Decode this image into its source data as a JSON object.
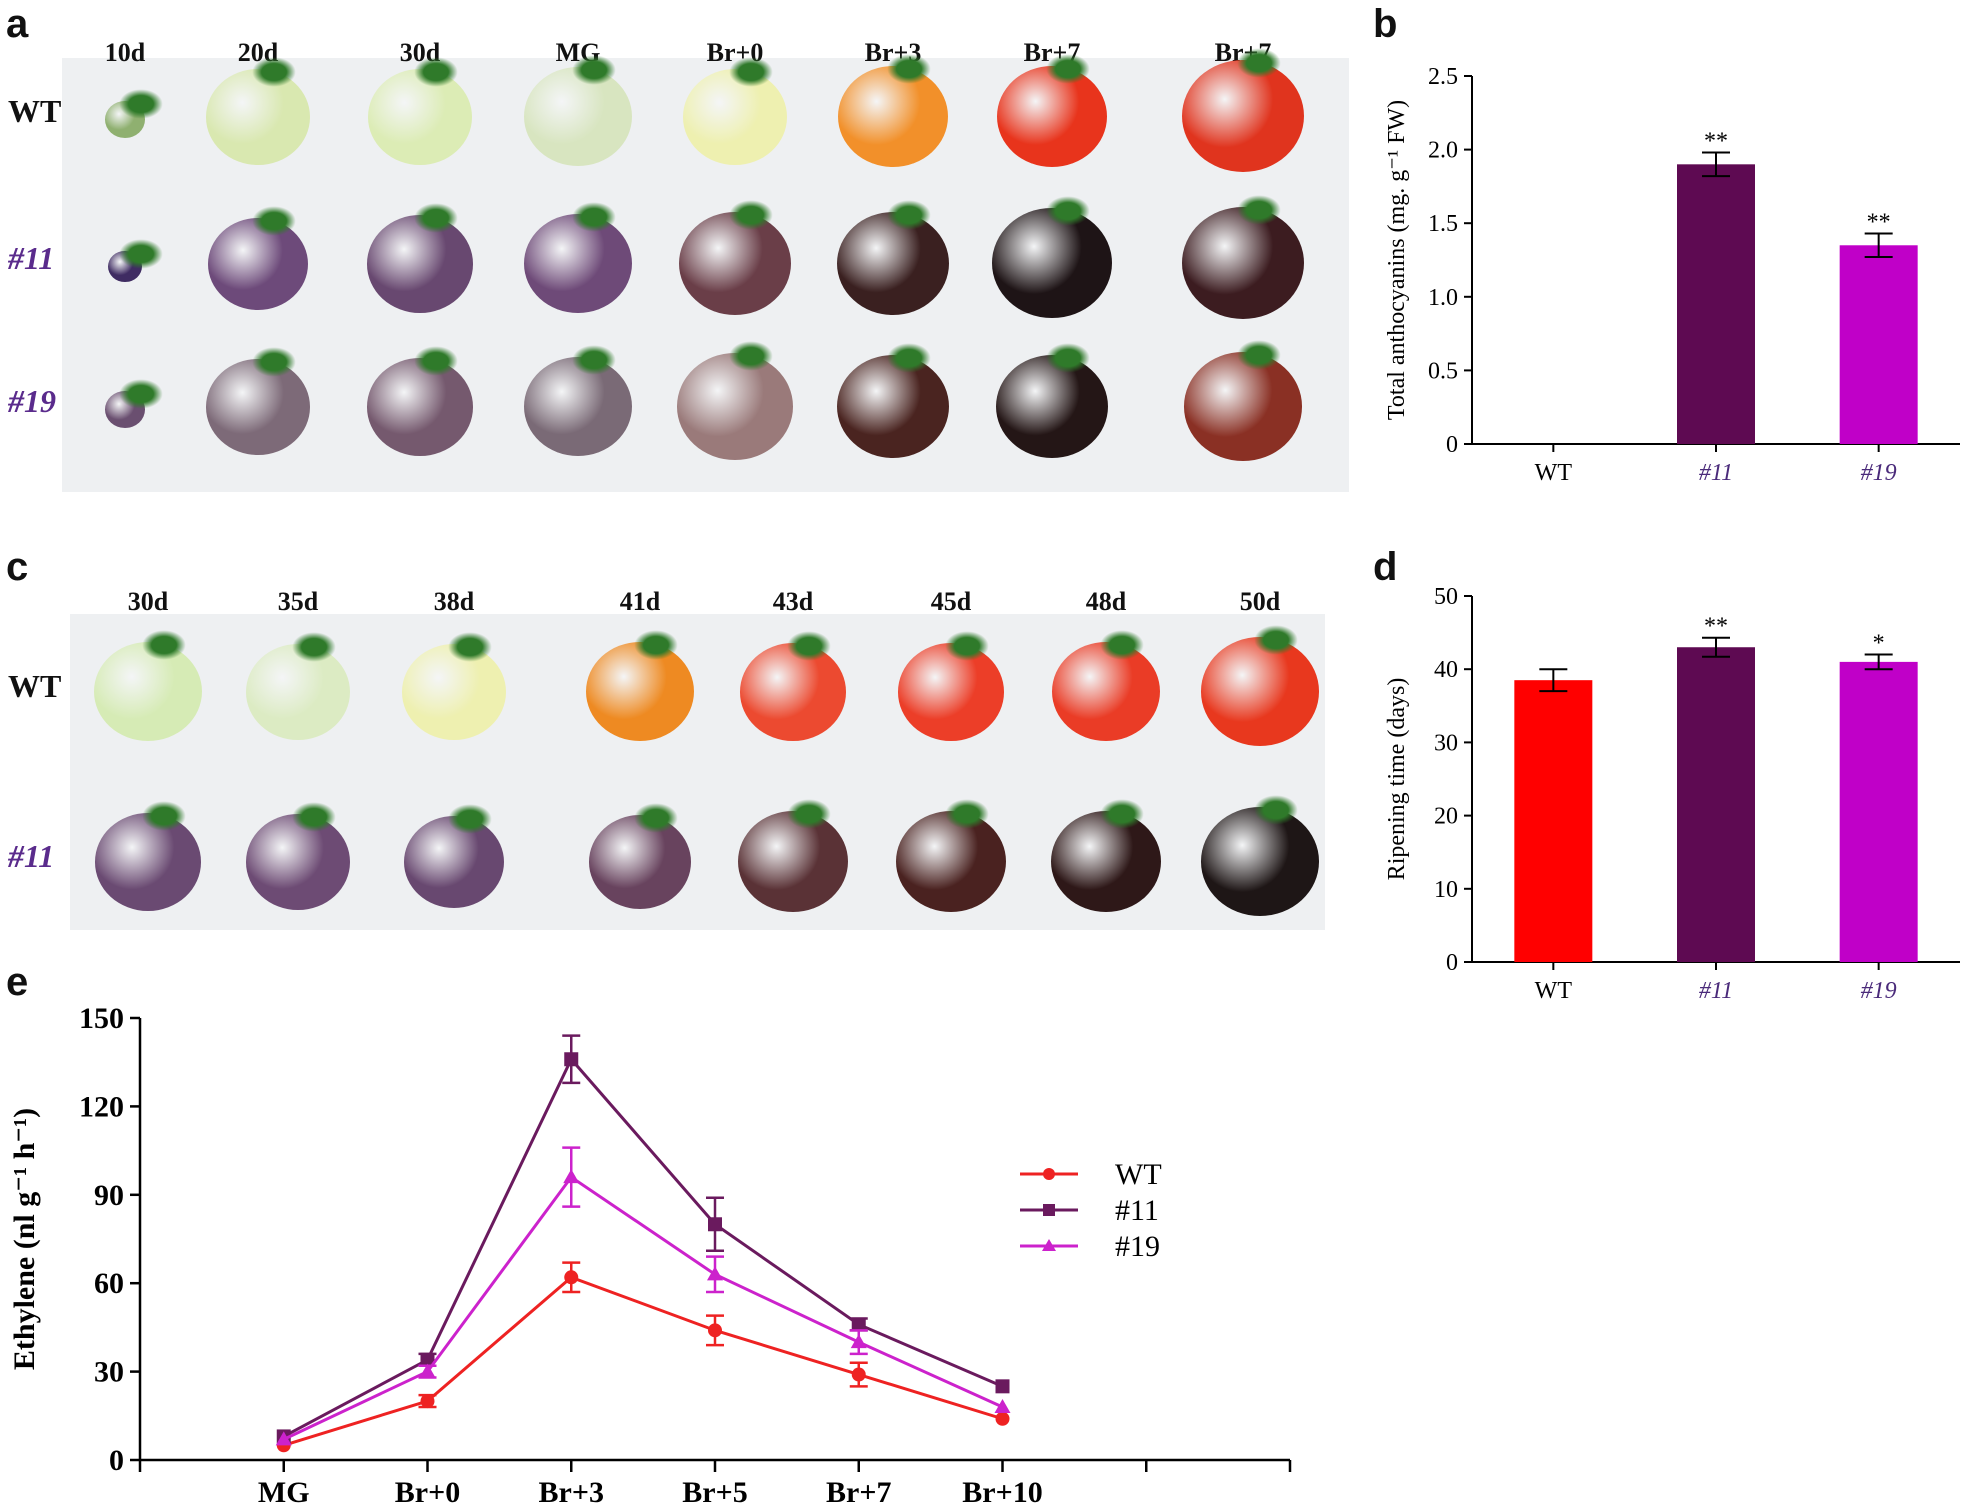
{
  "panel_a": {
    "letter": "a",
    "columns": [
      "10d",
      "20d",
      "30d",
      "MG",
      "Br+0",
      "Br+3",
      "Br+7",
      "Br+7"
    ],
    "rows": [
      {
        "label": "WT",
        "colors": [
          "#8fb070",
          "#d9e8b0",
          "#dcecb5",
          "#d8e5c0",
          "#eef0b0",
          "#f2902a",
          "#e8341c",
          "#e0341e"
        ]
      },
      {
        "label": "#11",
        "colors": [
          "#3f2c62",
          "#6d4a7a",
          "#684870",
          "#6e4a78",
          "#6a3e48",
          "#3a2020",
          "#1e1416",
          "#3c1c20"
        ]
      },
      {
        "label": "#19",
        "colors": [
          "#6a4f70",
          "#7d6a78",
          "#75596e",
          "#7a6a76",
          "#9a7a7a",
          "#4a2420",
          "#241616",
          "#8a3024"
        ]
      }
    ]
  },
  "panel_c": {
    "letter": "c",
    "columns": [
      "30d",
      "35d",
      "38d",
      "41d",
      "43d",
      "45d",
      "48d",
      "50d"
    ],
    "rows": [
      {
        "label": "WT",
        "colors": [
          "#d6ebb5",
          "#dcebc3",
          "#eef0b0",
          "#ee8a22",
          "#ec4a30",
          "#ec3e28",
          "#ea3c26",
          "#e8381e"
        ]
      },
      {
        "label": "#11",
        "colors": [
          "#6a4a72",
          "#6d4b74",
          "#684870",
          "#68435e",
          "#5a3236",
          "#4a2220",
          "#2e1818",
          "#1e1616"
        ]
      }
    ]
  },
  "colors": {
    "WT": "#ff0000",
    "#11": "#5e0a52",
    "#19": "#c000c8"
  },
  "chart_data": [
    {
      "panel": "b",
      "type": "bar",
      "categories": [
        "WT",
        "#11",
        "#19"
      ],
      "values": [
        0,
        1.9,
        1.35
      ],
      "errors": [
        0,
        0.08,
        0.08
      ],
      "significance": [
        "",
        "**",
        "**"
      ],
      "ylabel": "Total anthocyanins (mg. g⁻¹ FW)",
      "ylim": [
        0,
        2.5
      ],
      "yticks": [
        "0",
        "0.5",
        "1.0",
        "1.5",
        "2.0",
        "2.5"
      ],
      "colors": [
        "#ff0000",
        "#5e0a52",
        "#c000c8"
      ]
    },
    {
      "panel": "d",
      "type": "bar",
      "categories": [
        "WT",
        "#11",
        "#19"
      ],
      "values": [
        38.5,
        43,
        41
      ],
      "errors": [
        1.5,
        1.3,
        1.0
      ],
      "significance": [
        "",
        "**",
        "*"
      ],
      "ylabel": "Ripening time (days)",
      "ylim": [
        0,
        50
      ],
      "yticks": [
        "0",
        "10",
        "20",
        "30",
        "40",
        "50"
      ],
      "colors": [
        "#ff0000",
        "#5e0a52",
        "#c000c8"
      ]
    },
    {
      "panel": "e",
      "type": "line",
      "categories": [
        "MG",
        "Br+0",
        "Br+3",
        "Br+5",
        "Br+7",
        "Br+10"
      ],
      "ylabel": "Ethylene (nl g⁻¹ h⁻¹)",
      "ylim": [
        0,
        150
      ],
      "yticks": [
        "0",
        "30",
        "60",
        "90",
        "120",
        "150"
      ],
      "legend_position": "right",
      "series": [
        {
          "name": "WT",
          "values": [
            5,
            20,
            62,
            44,
            29,
            14
          ],
          "errors": [
            0,
            2,
            5,
            5,
            4,
            0
          ],
          "color": "#ee2222",
          "marker": "circle"
        },
        {
          "name": "#11",
          "values": [
            8,
            34,
            136,
            80,
            46,
            25
          ],
          "errors": [
            0,
            2,
            8,
            9,
            2,
            0
          ],
          "color": "#6a1a5e",
          "marker": "square"
        },
        {
          "name": "#19",
          "values": [
            7,
            30,
            96,
            63,
            40,
            18
          ],
          "errors": [
            0,
            2,
            10,
            6,
            4,
            0
          ],
          "color": "#cc22cc",
          "marker": "triangle"
        }
      ]
    }
  ]
}
